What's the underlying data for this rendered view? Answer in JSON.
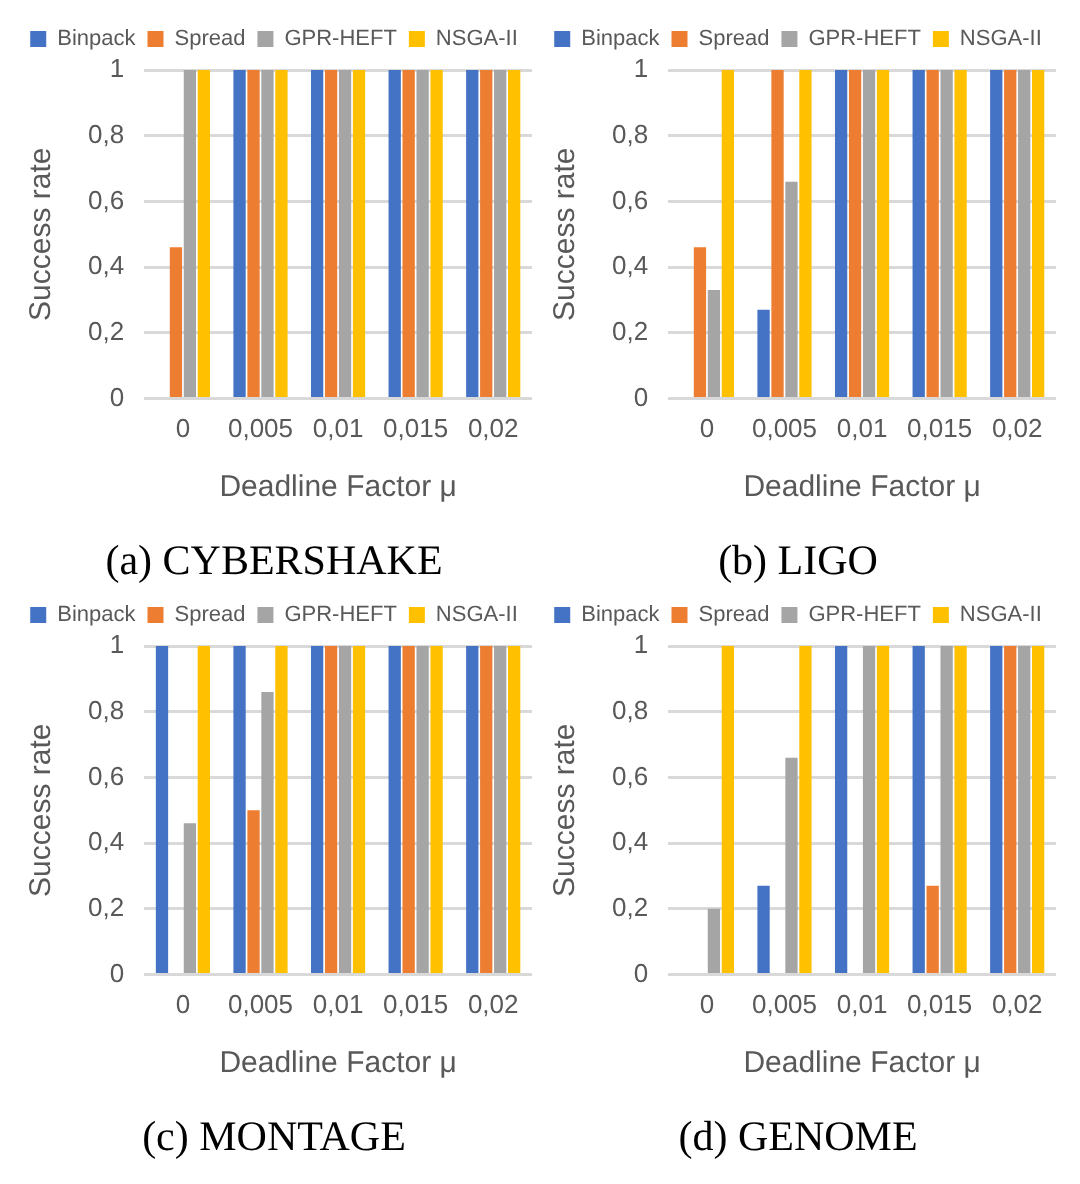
{
  "chart_data": [
    {
      "type": "bar",
      "title": "(a) CYBERSHAKE",
      "xlabel": "Deadline Factor μ",
      "ylabel": "Success rate",
      "categories": [
        "0",
        "0,005",
        "0,01",
        "0,015",
        "0,02"
      ],
      "ylim": [
        0,
        1
      ],
      "yticks": [
        {
          "value": 0,
          "label": "0"
        },
        {
          "value": 0.2,
          "label": "0,2"
        },
        {
          "value": 0.4,
          "label": "0,4"
        },
        {
          "value": 0.6,
          "label": "0,6"
        },
        {
          "value": 0.8,
          "label": "0,8"
        },
        {
          "value": 1,
          "label": "1"
        }
      ],
      "grid": "y",
      "legend": "top",
      "series": [
        {
          "name": "Binpack",
          "color": "#4472c4",
          "values": [
            0,
            1,
            1,
            1,
            1
          ]
        },
        {
          "name": "Spread",
          "color": "#ed7d31",
          "values": [
            0.46,
            1,
            1,
            1,
            1
          ]
        },
        {
          "name": "GPR-HEFT",
          "color": "#a5a5a5",
          "values": [
            1,
            1,
            1,
            1,
            1
          ]
        },
        {
          "name": "NSGA-II",
          "color": "#ffc000",
          "values": [
            1,
            1,
            1,
            1,
            1
          ]
        }
      ]
    },
    {
      "type": "bar",
      "title": "(b) LIGO",
      "xlabel": "Deadline Factor μ",
      "ylabel": "Success rate",
      "categories": [
        "0",
        "0,005",
        "0,01",
        "0,015",
        "0,02"
      ],
      "ylim": [
        0,
        1
      ],
      "yticks": [
        {
          "value": 0,
          "label": "0"
        },
        {
          "value": 0.2,
          "label": "0,2"
        },
        {
          "value": 0.4,
          "label": "0,4"
        },
        {
          "value": 0.6,
          "label": "0,6"
        },
        {
          "value": 0.8,
          "label": "0,8"
        },
        {
          "value": 1,
          "label": "1"
        }
      ],
      "grid": "y",
      "legend": "top",
      "series": [
        {
          "name": "Binpack",
          "color": "#4472c4",
          "values": [
            0,
            0.27,
            1,
            1,
            1
          ]
        },
        {
          "name": "Spread",
          "color": "#ed7d31",
          "values": [
            0.46,
            1,
            1,
            1,
            1
          ]
        },
        {
          "name": "GPR-HEFT",
          "color": "#a5a5a5",
          "values": [
            0.33,
            0.66,
            1,
            1,
            1
          ]
        },
        {
          "name": "NSGA-II",
          "color": "#ffc000",
          "values": [
            1,
            1,
            1,
            1,
            1
          ]
        }
      ]
    },
    {
      "type": "bar",
      "title": "(c) MONTAGE",
      "xlabel": "Deadline Factor μ",
      "ylabel": "Success rate",
      "categories": [
        "0",
        "0,005",
        "0,01",
        "0,015",
        "0,02"
      ],
      "ylim": [
        0,
        1
      ],
      "yticks": [
        {
          "value": 0,
          "label": "0"
        },
        {
          "value": 0.2,
          "label": "0,2"
        },
        {
          "value": 0.4,
          "label": "0,4"
        },
        {
          "value": 0.6,
          "label": "0,6"
        },
        {
          "value": 0.8,
          "label": "0,8"
        },
        {
          "value": 1,
          "label": "1"
        }
      ],
      "grid": "y",
      "legend": "top",
      "series": [
        {
          "name": "Binpack",
          "color": "#4472c4",
          "values": [
            1,
            1,
            1,
            1,
            1
          ]
        },
        {
          "name": "Spread",
          "color": "#ed7d31",
          "values": [
            0,
            0.5,
            1,
            1,
            1
          ]
        },
        {
          "name": "GPR-HEFT",
          "color": "#a5a5a5",
          "values": [
            0.46,
            0.86,
            1,
            1,
            1
          ]
        },
        {
          "name": "NSGA-II",
          "color": "#ffc000",
          "values": [
            1,
            1,
            1,
            1,
            1
          ]
        }
      ]
    },
    {
      "type": "bar",
      "title": "(d) GENOME",
      "xlabel": "Deadline Factor μ",
      "ylabel": "Success rate",
      "categories": [
        "0",
        "0,005",
        "0,01",
        "0,015",
        "0,02"
      ],
      "ylim": [
        0,
        1
      ],
      "yticks": [
        {
          "value": 0,
          "label": "0"
        },
        {
          "value": 0.2,
          "label": "0,2"
        },
        {
          "value": 0.4,
          "label": "0,4"
        },
        {
          "value": 0.6,
          "label": "0,6"
        },
        {
          "value": 0.8,
          "label": "0,8"
        },
        {
          "value": 1,
          "label": "1"
        }
      ],
      "grid": "y",
      "legend": "top",
      "series": [
        {
          "name": "Binpack",
          "color": "#4472c4",
          "values": [
            0,
            0.27,
            1,
            1,
            1
          ]
        },
        {
          "name": "Spread",
          "color": "#ed7d31",
          "values": [
            0,
            0,
            0,
            0.27,
            1
          ]
        },
        {
          "name": "GPR-HEFT",
          "color": "#a5a5a5",
          "values": [
            0.2,
            0.66,
            1,
            1,
            1
          ]
        },
        {
          "name": "NSGA-II",
          "color": "#ffc000",
          "values": [
            1,
            1,
            1,
            1,
            1
          ]
        }
      ]
    }
  ]
}
